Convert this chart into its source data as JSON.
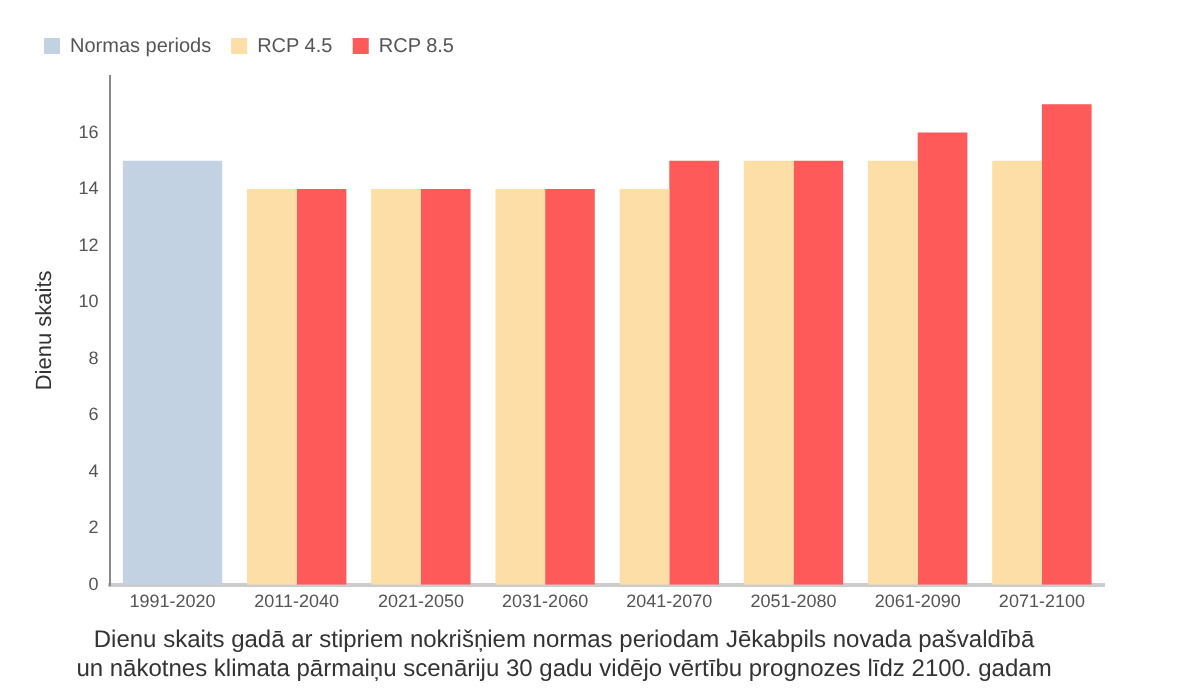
{
  "chart_data": {
    "type": "bar",
    "title": "Dienu skaits gadā ar stipriem nokrišņiem normas periodam Jēkabpils novada pašvaldībā\nun nākotnes klimata pārmaiņu scenāriju 30 gadu vidējo vērtību prognozes līdz 2100. gadam",
    "ylabel": "Dienu skaits",
    "categories": [
      "1991-2020",
      "2011-2040",
      "2021-2050",
      "2031-2060",
      "2041-2070",
      "2051-2080",
      "2061-2090",
      "2071-2100"
    ],
    "series": [
      {
        "name": "Normas periods",
        "color": "#c3d2e2",
        "values": [
          15,
          null,
          null,
          null,
          null,
          null,
          null,
          null
        ]
      },
      {
        "name": "RCP 4.5",
        "color": "#fddea6",
        "values": [
          null,
          14,
          14,
          14,
          14,
          15,
          15,
          15
        ]
      },
      {
        "name": "RCP 8.5",
        "color": "#ff5a5a",
        "values": [
          null,
          14,
          14,
          14,
          15,
          15,
          16,
          17
        ]
      }
    ],
    "ylim": [
      0,
      18
    ],
    "yticks": [
      0,
      2,
      4,
      6,
      8,
      10,
      12,
      14,
      16
    ],
    "grid": false,
    "legend": "top left"
  }
}
